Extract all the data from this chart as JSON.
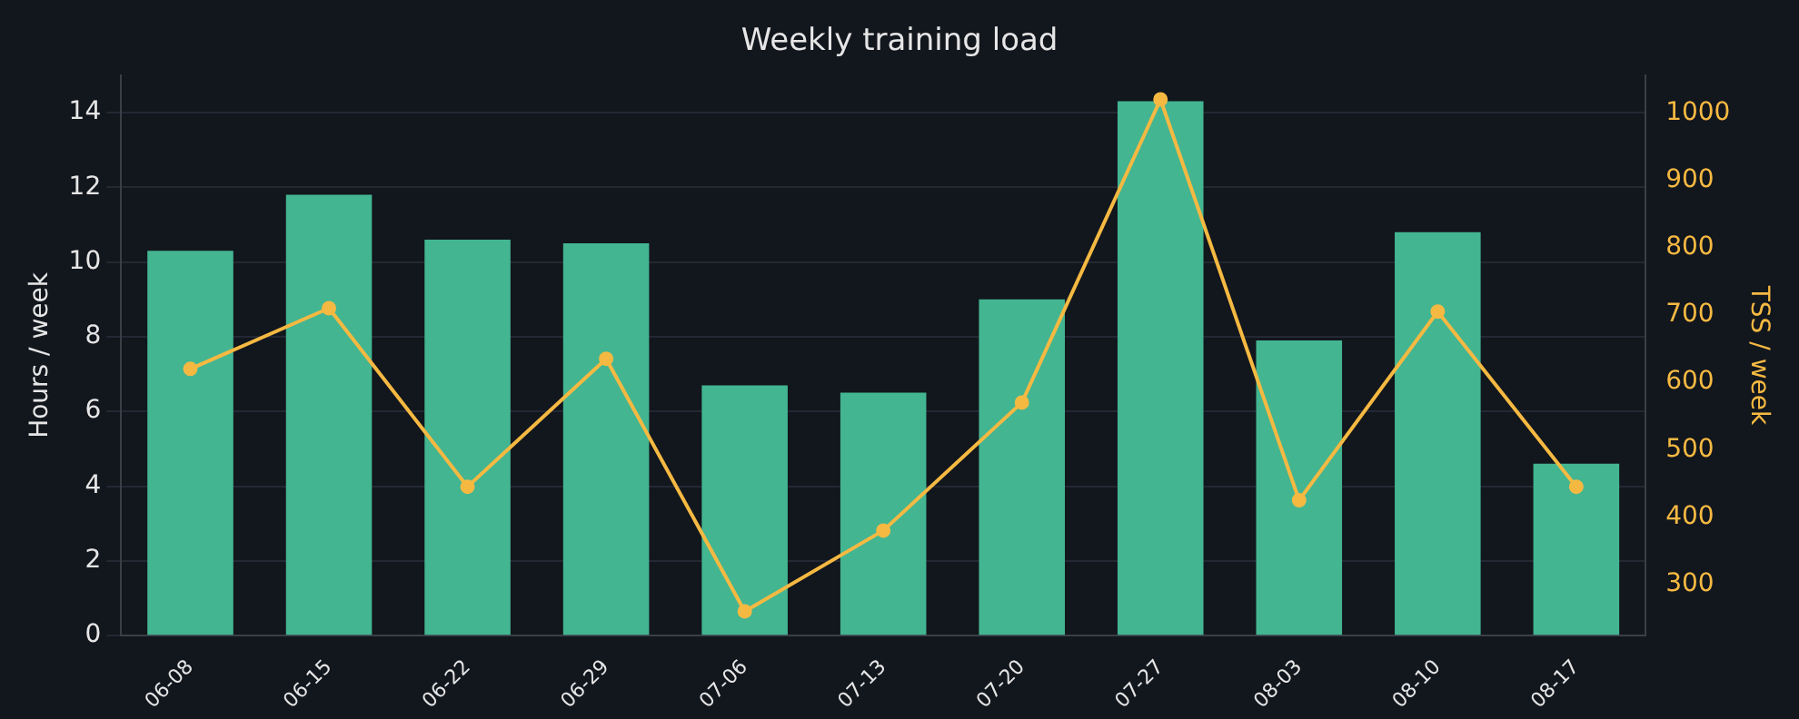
{
  "chart_data": {
    "type": "bar",
    "title": "Weekly training load",
    "ylabel": "Hours / week",
    "y2label": "TSS / week",
    "categories": [
      "06-08",
      "06-15",
      "06-22",
      "06-29",
      "07-06",
      "07-13",
      "07-20",
      "07-27",
      "08-03",
      "08-10",
      "08-17"
    ],
    "series": [
      {
        "color": "#43b591",
        "values": [
          10.3,
          11.8,
          10.6,
          10.5,
          6.7,
          6.5,
          9.0,
          14.3,
          7.9,
          10.8,
          4.6
        ]
      },
      {
        "type": "line",
        "axis": "y2",
        "color": "#f5b942",
        "values": [
          620,
          710,
          445,
          635,
          260,
          380,
          570,
          1020,
          425,
          705,
          445
        ]
      }
    ],
    "ylim": [
      0,
      15
    ],
    "yticks": [
      0,
      2,
      4,
      6,
      8,
      10,
      12,
      14
    ],
    "y2lim": [
      224,
      1056
    ],
    "y2ticks": [
      300,
      400,
      500,
      600,
      700,
      800,
      900,
      1000
    ],
    "grid": "y",
    "legend": false,
    "marker": "circle",
    "line_style": "solid"
  }
}
